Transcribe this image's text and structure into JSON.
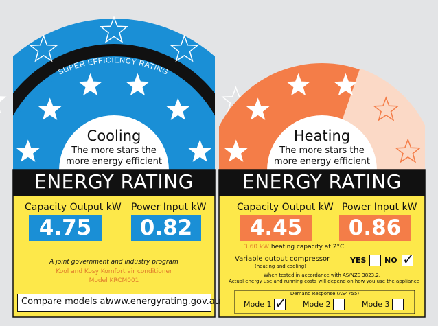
{
  "colors": {
    "blue": "#1a8fd6",
    "orange": "#f47d48",
    "yellow": "#fde84a",
    "black": "#111111",
    "light_orange": "#fbd9c6"
  },
  "super_band": {
    "label": "SUPER EFFICIENCY RATING",
    "stars": 5
  },
  "cooling": {
    "title": "Cooling",
    "subtitle_line1": "The more stars the",
    "subtitle_line2": "more energy efficient",
    "stars": 6,
    "energy_rating": "ENERGY RATING",
    "capacity_label": "Capacity Output kW",
    "power_label": "Power Input kW",
    "capacity_value": "4.75",
    "power_value": "0.82",
    "program": "A joint government and industry program",
    "model_line1": "Kool and Kosy Komfort air conditioner",
    "model_line2": "Model KRCM001",
    "compare_label": "Compare models at",
    "compare_url": "www.energyrating.gov.au"
  },
  "heating": {
    "title": "Heating",
    "subtitle_line1": "The more stars the",
    "subtitle_line2": "more energy efficient",
    "stars_filled": 4,
    "stars_total": 6,
    "energy_rating": "ENERGY RATING",
    "capacity_label": "Capacity Output kW",
    "power_label": "Power Input kW",
    "capacity_value": "4.45",
    "power_value": "0.86",
    "note_value": "3.60 kW",
    "note_text": "heating capacity at 2",
    "note_unit": "°C",
    "compressor_label": "Variable output compressor",
    "compressor_sub": "(heating and cooling)",
    "yes_label": "YES",
    "no_label": "NO",
    "yes_checked": false,
    "no_checked": true,
    "standard_note": "When tested in accordance with AS/NZS 3823.2.",
    "usage_note": "Actual energy use and running costs will depend on how you use the appliance",
    "demand_title": "Demand Response (AS4755)",
    "modes": [
      {
        "label": "Mode 1",
        "checked": true
      },
      {
        "label": "Mode 2",
        "checked": false
      },
      {
        "label": "Mode 3",
        "checked": false
      }
    ]
  }
}
